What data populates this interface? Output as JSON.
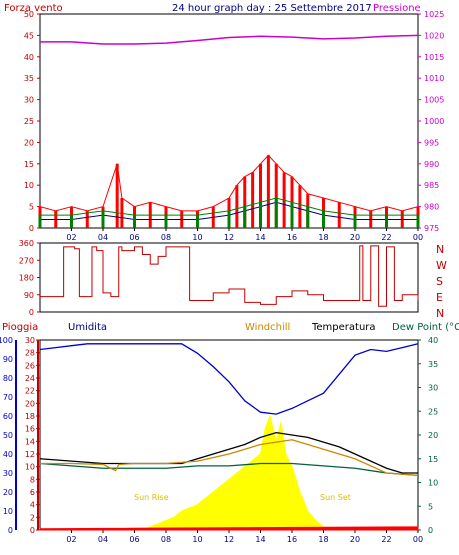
{
  "header": {
    "left_label": "Forza vento",
    "title": "24 hour graph day : 25 Settembre 2017",
    "right_label": "Pressione"
  },
  "colors": {
    "red": "#ff0000",
    "dark_red": "#c00000",
    "green": "#008000",
    "navy": "#000080",
    "magenta": "#cc00cc",
    "blue": "#0000cc",
    "orange": "#cc8800",
    "black": "#000000",
    "teal": "#006040",
    "yellow": "#ffff00",
    "gold_label": "#d8c000"
  },
  "chart_data": [
    {
      "type": "line",
      "panel": "wind_pressure",
      "xlabel": "",
      "x_ticks": [
        "02",
        "04",
        "06",
        "08",
        "10",
        "12",
        "14",
        "16",
        "18",
        "20",
        "22",
        "00"
      ],
      "x_range_hours": [
        0,
        24
      ],
      "left_axis": {
        "label": "Forza vento",
        "ylim": [
          0,
          50
        ],
        "ticks": [
          0,
          5,
          10,
          15,
          20,
          25,
          30,
          35,
          40,
          45,
          50
        ]
      },
      "right_axis": {
        "label": "Pressione",
        "ylim": [
          975,
          1025
        ],
        "ticks": [
          975,
          980,
          985,
          990,
          995,
          1000,
          1005,
          1010,
          1015,
          1020,
          1025
        ]
      },
      "series": [
        {
          "name": "",
          "color": "red",
          "axis": "left",
          "style": "bars",
          "x": [
            0,
            1,
            2,
            3,
            4,
            4.9,
            5.2,
            6,
            7,
            8,
            9,
            10,
            11,
            12,
            12.5,
            13,
            13.5,
            14,
            14.5,
            15,
            15.5,
            16,
            16.5,
            17,
            18,
            19,
            20,
            21,
            22,
            23,
            24
          ],
          "y": [
            5,
            4,
            5,
            4,
            5,
            15,
            7,
            5,
            6,
            5,
            4,
            4,
            5,
            7,
            10,
            12,
            13,
            15,
            17,
            15,
            13,
            12,
            10,
            8,
            7,
            6,
            5,
            4,
            5,
            4,
            5
          ]
        },
        {
          "name": "",
          "color": "navy",
          "axis": "left",
          "x": [
            0,
            2,
            4,
            6,
            8,
            10,
            12,
            13,
            14,
            15,
            16,
            17,
            18,
            20,
            22,
            24
          ],
          "y": [
            2,
            2,
            3,
            2,
            2,
            2,
            3,
            4,
            5,
            6,
            5,
            4,
            3,
            2,
            2,
            2
          ]
        },
        {
          "name": "",
          "color": "green",
          "axis": "left",
          "style": "bars",
          "x": [
            0,
            2,
            4,
            6,
            8,
            10,
            12,
            13,
            14,
            15,
            16,
            17,
            18,
            20,
            22,
            24
          ],
          "y": [
            3,
            3,
            4,
            3,
            3,
            3,
            4,
            5,
            6,
            7,
            6,
            5,
            4,
            3,
            3,
            3
          ]
        },
        {
          "name": "",
          "color": "magenta",
          "axis": "right",
          "x": [
            0,
            2,
            4,
            6,
            8,
            10,
            12,
            14,
            16,
            18,
            20,
            22,
            24
          ],
          "y": [
            1018.5,
            1018.5,
            1018,
            1018,
            1018.2,
            1018.8,
            1019.5,
            1019.8,
            1019.6,
            1019.2,
            1019.4,
            1019.8,
            1020
          ]
        }
      ]
    },
    {
      "type": "line",
      "panel": "wind_direction",
      "x_range_hours": [
        0,
        24
      ],
      "left_axis": {
        "ylim": [
          0,
          360
        ],
        "ticks": [
          0,
          90,
          180,
          270,
          360
        ]
      },
      "right_labels": [
        "N",
        "W",
        "S",
        "E",
        "N"
      ],
      "series": [
        {
          "name": "",
          "color": "dark_red",
          "step": true,
          "x": [
            0,
            1,
            1.5,
            2,
            2.2,
            2.5,
            3,
            3.3,
            3.6,
            4,
            4.5,
            5,
            5.2,
            6,
            6.5,
            7,
            7.5,
            8,
            9,
            9.5,
            10,
            11,
            12,
            13,
            14,
            15,
            16,
            17,
            18,
            19,
            20,
            20.3,
            20.5,
            21,
            21.5,
            22,
            22.5,
            23,
            24
          ],
          "y": [
            80,
            80,
            340,
            340,
            330,
            80,
            80,
            340,
            320,
            100,
            80,
            340,
            320,
            340,
            300,
            250,
            290,
            340,
            340,
            60,
            60,
            100,
            120,
            50,
            40,
            80,
            110,
            90,
            60,
            60,
            60,
            345,
            60,
            345,
            30,
            340,
            60,
            90,
            60
          ]
        }
      ]
    },
    {
      "type": "line",
      "panel": "humidity_temperature",
      "x_ticks": [
        "02",
        "04",
        "06",
        "08",
        "10",
        "12",
        "14",
        "16",
        "18",
        "20",
        "22",
        "00"
      ],
      "x_range_hours": [
        0,
        24
      ],
      "labels": {
        "rain": "Pioggia",
        "humidity": "Umidita",
        "windchill": "Windchill",
        "temperature": "Temperatura",
        "dewpoint": "Dew Point (°C",
        "sunrise": "Sun Rise",
        "sunset": "Sun Set"
      },
      "humidity_axis": {
        "ylim": [
          0,
          100
        ],
        "ticks": [
          0,
          10,
          20,
          30,
          40,
          50,
          60,
          70,
          80,
          90,
          100
        ]
      },
      "rain_axis": {
        "ylim": [
          0,
          30
        ],
        "ticks": [
          0,
          2,
          4,
          6,
          8,
          10,
          12,
          14,
          16,
          18,
          20,
          22,
          24,
          26,
          28,
          30
        ]
      },
      "temp_axis": {
        "ylim": [
          0,
          40
        ],
        "ticks": [
          0,
          5,
          10,
          15,
          20,
          25,
          30,
          35,
          40
        ]
      },
      "series": [
        {
          "name": "Umidita",
          "color": "blue",
          "axis": "humidity",
          "x": [
            0,
            1,
            2,
            3,
            4,
            6,
            8,
            9,
            10,
            11,
            12,
            13,
            14,
            15,
            16,
            17,
            18,
            19,
            20,
            21,
            22,
            23,
            24
          ],
          "y": [
            95,
            96,
            97,
            98,
            98,
            98,
            98,
            98,
            93,
            86,
            78,
            68,
            62,
            61,
            64,
            68,
            72,
            82,
            92,
            95,
            94,
            96,
            98
          ]
        },
        {
          "name": "Temperatura",
          "color": "black",
          "axis": "temp",
          "x": [
            0,
            2,
            4,
            6,
            8,
            9,
            10,
            11,
            12,
            13,
            14,
            15,
            16,
            17,
            18,
            19,
            20,
            21,
            22,
            23,
            24
          ],
          "y": [
            15,
            14.5,
            14,
            14,
            14,
            14,
            15,
            16,
            17,
            18,
            19.5,
            20.5,
            20,
            19.5,
            18.5,
            17.5,
            16,
            14.5,
            13,
            12,
            12
          ]
        },
        {
          "name": "Dew Point",
          "color": "teal",
          "axis": "temp",
          "x": [
            0,
            2,
            4,
            6,
            8,
            10,
            12,
            14,
            16,
            18,
            20,
            22,
            24
          ],
          "y": [
            14,
            13.5,
            13,
            13,
            13,
            13.5,
            13.5,
            14,
            14,
            13.5,
            13,
            12,
            11.5
          ]
        },
        {
          "name": "Windchill",
          "color": "orange",
          "axis": "temp",
          "x": [
            0,
            2,
            4,
            4.8,
            5,
            6,
            8,
            10,
            12,
            14,
            16,
            18,
            20,
            22,
            24
          ],
          "y": [
            14,
            14,
            13.8,
            12.5,
            13.8,
            14,
            14,
            14.5,
            16,
            18,
            19,
            17,
            15,
            12,
            11.5
          ]
        },
        {
          "name": "",
          "color": "yellow",
          "axis": "rain",
          "style": "area",
          "note": "sun radiation",
          "x": [
            6.5,
            7,
            7.5,
            8,
            8.5,
            9,
            10,
            11,
            12,
            12.5,
            13,
            13.5,
            14,
            14.3,
            14.6,
            15,
            15.3,
            15.6,
            16,
            16.5,
            17,
            17.5,
            18,
            18.5,
            19
          ],
          "y": [
            0,
            0.5,
            1,
            1.5,
            2,
            3,
            4,
            6,
            8,
            9,
            10,
            11,
            12,
            16,
            18,
            14,
            17,
            12,
            10,
            6,
            3,
            1.5,
            0.5,
            0.3,
            0
          ]
        },
        {
          "name": "",
          "color": "red",
          "axis": "rain",
          "style": "area",
          "x": [
            0,
            24
          ],
          "y": [
            0.2,
            0.5
          ]
        }
      ]
    }
  ]
}
